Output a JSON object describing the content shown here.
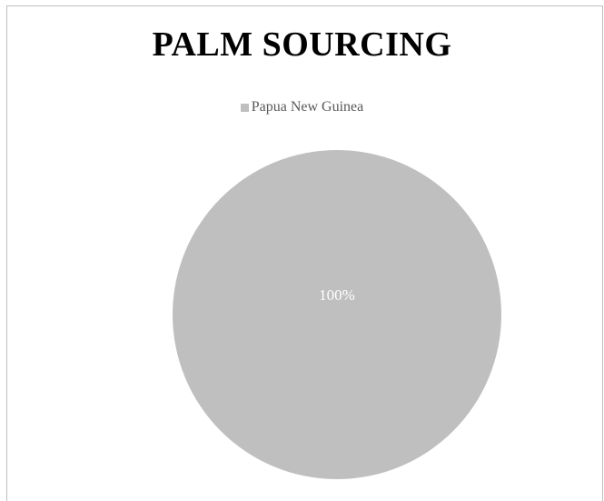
{
  "chart_data": {
    "type": "pie",
    "title": "PALM SOURCING",
    "legend_position": "top",
    "series": [
      {
        "values": [
          100
        ]
      }
    ],
    "categories": [
      "Papua New Guinea"
    ],
    "slices": [
      {
        "label": "Papua New Guinea",
        "value": 100,
        "data_label": "100%",
        "color": "#bfbfbf"
      }
    ],
    "colors": {
      "slice": "#bfbfbf",
      "data_label": "#ffffff",
      "legend_text": "#595959",
      "title": "#000000",
      "border": "#bfbfbf"
    }
  }
}
